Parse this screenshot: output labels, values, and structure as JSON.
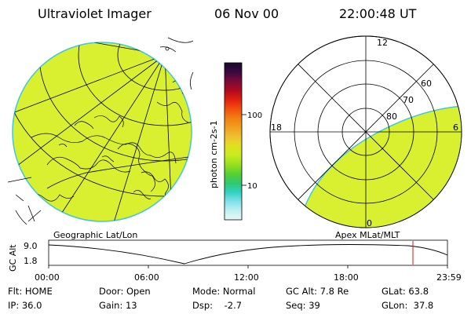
{
  "header": {
    "title": "Ultraviolet Imager",
    "date": "06 Nov 00",
    "time": "22:00:48 UT"
  },
  "colorbar": {
    "unit_label": "photon cm-2s-1",
    "tick_labels": [
      "100",
      "10"
    ],
    "gradient_colors": [
      "#1a0a2a",
      "#3a0840",
      "#7a0a3a",
      "#b00a20",
      "#e02010",
      "#f05010",
      "#f08010",
      "#f0a020",
      "#f0c030",
      "#e0e020",
      "#c8ec20",
      "#98e020",
      "#58d030",
      "#30c870",
      "#30d0c0",
      "#80e0e8",
      "#c0f0f0",
      "#e8f8f8"
    ]
  },
  "left_panel": {
    "caption": "Geographic Lat/Lon",
    "fill_color": "#d8f030",
    "edge_color": "#40c8d8"
  },
  "right_panel": {
    "caption": "Apex MLat/MLT",
    "mlt_labels": {
      "top": "12",
      "left": "18",
      "right": "6",
      "bottom": "0"
    },
    "lat_labels": [
      "60",
      "70",
      "80"
    ],
    "fill_color": "#d8f030"
  },
  "timeline": {
    "y_label": "GC Alt",
    "y_ticks": [
      "9.0",
      "1.8"
    ],
    "x_ticks": [
      "00:00",
      "06:00",
      "12:00",
      "18:00",
      "23:59"
    ],
    "marker_color": "#e01010"
  },
  "footer": {
    "row1": {
      "flt": "Flt: HOME",
      "door": "Door: Open",
      "mode": "Mode: Normal",
      "gcalt": "GC Alt: 7.8 Re",
      "glat": "GLat: 63.8"
    },
    "row2": {
      "ip": "IP: 36.0",
      "gain": "Gain: 13",
      "dsp": "Dsp:    -2.7",
      "seq": "Seq: 39",
      "glon": "GLon:  37.8"
    }
  }
}
